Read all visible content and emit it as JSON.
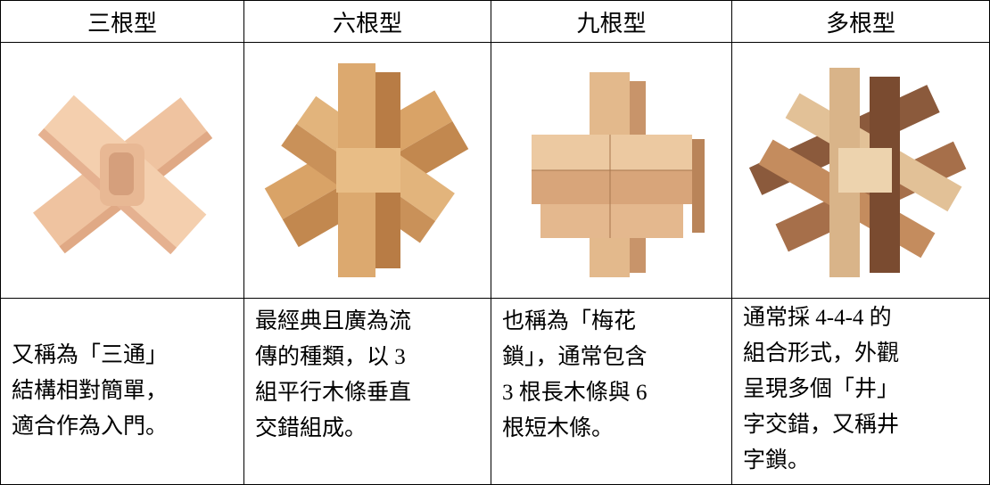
{
  "table": {
    "header": [
      "三根型",
      "六根型",
      "九根型",
      "多根型"
    ],
    "descriptions": [
      [
        "又稱為「三通」",
        "結構相對簡單，",
        "適合作為入門。"
      ],
      [
        "最經典且廣為流",
        "傳的種類，以 3",
        "組平行木條垂直",
        "交錯組成。"
      ],
      [
        "也稱為「梅花",
        "鎖」，通常包含",
        "3 根長木條與 6",
        "根短木條。"
      ],
      [
        "通常採 4-4-4 的",
        "組合形式，外觀",
        "呈現多個「井」",
        "字交錯，又稱井",
        "字鎖。"
      ]
    ]
  }
}
